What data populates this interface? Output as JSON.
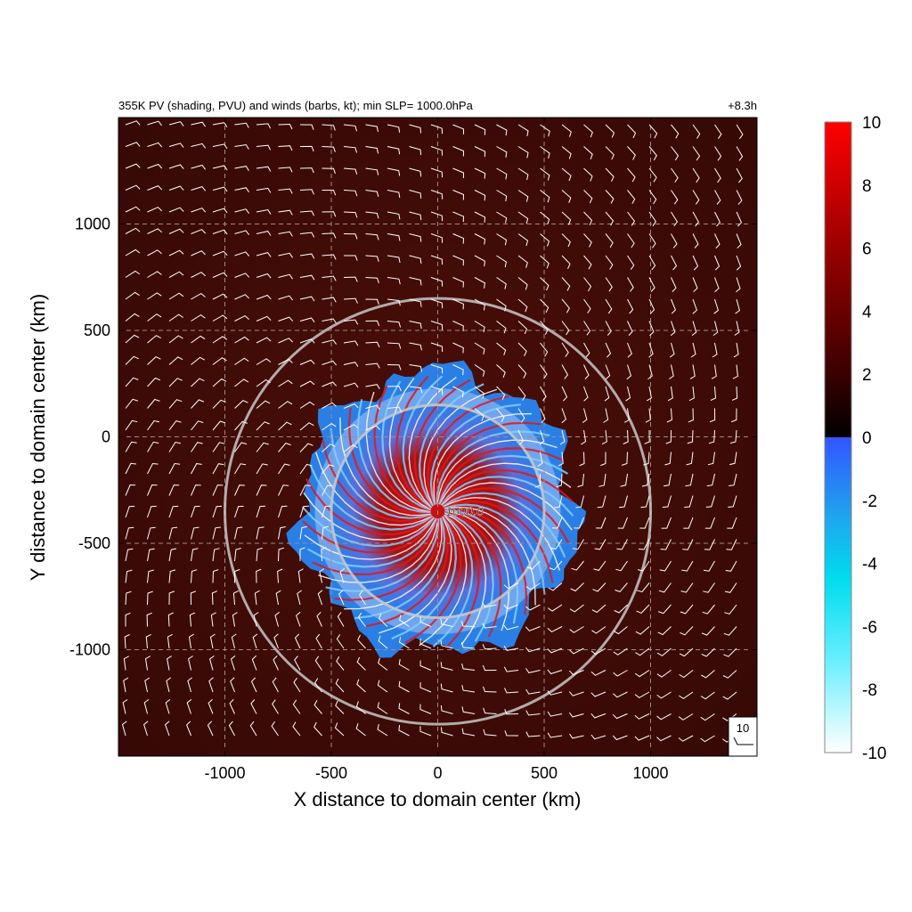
{
  "chart_data": {
    "type": "heatmap",
    "title_left": "355K PV (shading, PVU) and winds (barbs, kt); min SLP= 1000.0hPa",
    "title_right": "+8.3h",
    "xlabel": "X distance to domain center (km)",
    "ylabel": "Y distance to domain center (km)",
    "xlim": [
      -1500,
      1500
    ],
    "ylim": [
      -1500,
      1500
    ],
    "x_ticks": [
      -1000,
      -500,
      0,
      500,
      1000
    ],
    "y_ticks": [
      1000,
      500,
      0,
      -500,
      -1000
    ],
    "x_tick_labels": [
      "-1000",
      "-500",
      "0",
      "500",
      "1000"
    ],
    "y_tick_labels": [
      "1000",
      "500",
      "0",
      "-500",
      "-1000"
    ],
    "grid": true,
    "contour_label": "1000.0",
    "contour_center": [
      0,
      -350
    ],
    "range_rings_km": [
      500,
      1000
    ],
    "barb_reference_label": "10",
    "colorbar": {
      "min": -10,
      "max": 10,
      "ticks": [
        10,
        8,
        6,
        4,
        2,
        0,
        -2,
        -4,
        -6,
        -8,
        -10
      ],
      "tick_labels": [
        "10",
        "8",
        "6",
        "4",
        "2",
        "0",
        "-2",
        "-4",
        "-6",
        "-8",
        "-10"
      ],
      "colors": {
        "pos_top": "#ff0000",
        "pos_low": "#000000",
        "neg_top": "#3355ff",
        "neg_mid": "#00ddee",
        "neg_low": "#ffffff"
      }
    },
    "background_color": "#3a0a07"
  }
}
